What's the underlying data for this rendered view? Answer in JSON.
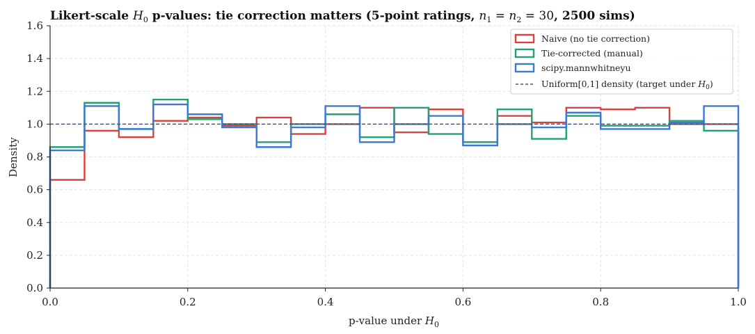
{
  "chart_data": {
    "type": "line",
    "title_prefix": "Likert-scale ",
    "title_math": "H",
    "title_sub": "0",
    "title_mid": " p-values: tie correction matters  (5-point ratings, ",
    "title_n1": "n",
    "title_n1_sub": "1",
    "title_eq": " = ",
    "title_n2": "n",
    "title_n2_sub": "2",
    "title_eq2": " = 30",
    "title_suffix": ", 2500 sims)",
    "xlabel": "p-value under ",
    "xlabel_math": "H",
    "xlabel_sub": "0",
    "ylabel": "Density",
    "xlim": [
      0.0,
      1.0
    ],
    "ylim": [
      0.0,
      1.6
    ],
    "xticks": [
      "0.0",
      "0.2",
      "0.4",
      "0.6",
      "0.8",
      "1.0"
    ],
    "yticks": [
      "0.0",
      "0.2",
      "0.4",
      "0.6",
      "0.8",
      "1.0",
      "1.2",
      "1.4",
      "1.6"
    ],
    "grid": true,
    "legend_position": "top-right",
    "bin_edges": [
      0.0,
      0.05,
      0.1,
      0.15,
      0.2,
      0.25,
      0.3,
      0.35,
      0.4,
      0.45,
      0.5,
      0.55,
      0.6,
      0.65,
      0.7,
      0.75,
      0.8,
      0.85,
      0.9,
      0.95,
      1.0
    ],
    "series": [
      {
        "name": "Naive (no tie correction)",
        "color": "#d94040",
        "values": [
          0.66,
          0.96,
          0.92,
          1.02,
          1.04,
          0.99,
          1.04,
          0.94,
          1.0,
          1.1,
          0.95,
          1.09,
          0.89,
          1.05,
          1.01,
          1.1,
          1.09,
          1.1,
          1.0,
          1.0
        ]
      },
      {
        "name": "Tie-corrected (manual)",
        "color": "#22a077",
        "values": [
          0.86,
          1.13,
          0.97,
          1.15,
          1.03,
          1.0,
          0.89,
          1.0,
          1.06,
          0.92,
          1.1,
          0.94,
          0.89,
          1.09,
          0.91,
          1.05,
          0.99,
          0.99,
          1.02,
          0.96
        ]
      },
      {
        "name": "scipy.mannwhitneyu",
        "color": "#3a78d9",
        "values": [
          0.84,
          1.11,
          0.97,
          1.12,
          1.06,
          0.98,
          0.86,
          0.98,
          1.11,
          0.89,
          1.0,
          1.05,
          0.87,
          1.0,
          0.98,
          1.07,
          0.97,
          0.97,
          1.01,
          1.11
        ]
      }
    ],
    "reference_line": {
      "name_prefix": "Uniform[0,1] density (target under ",
      "name_math": "H",
      "name_sub": "0",
      "name_suffix": ")",
      "value": 1.0,
      "color": "#4a5570",
      "style": "dashed"
    }
  }
}
